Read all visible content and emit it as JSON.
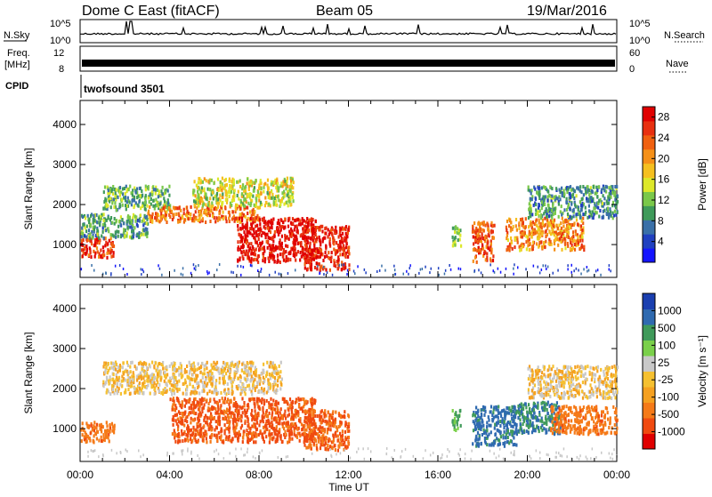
{
  "header": {
    "title": "Dome C East (fitACF)",
    "beam": "Beam 05",
    "date": "19/Mar/2016"
  },
  "status_panels": {
    "nsky_label": "N.Sky",
    "nsearch_label": "N.Search",
    "freq_label_line1": "Freq.",
    "freq_label_line2": "[MHz]",
    "nave_label": "Nave",
    "cpid_label": "CPID",
    "cpid_text": "twofsound 3501",
    "noise_ticks_left": [
      "10^5",
      "10^0"
    ],
    "noise_ticks_right": [
      "10^5",
      "10^0"
    ],
    "freq_ticks": [
      "12",
      "8"
    ],
    "nave_ticks": [
      "60",
      "0"
    ]
  },
  "colors": {
    "power_scale": [
      "#1414ff",
      "#2040c0",
      "#3a70a8",
      "#3f9a5a",
      "#7ac84a",
      "#dde82a",
      "#f5c020",
      "#f59018",
      "#f06010",
      "#e83010",
      "#e00000"
    ],
    "velocity_scale": [
      "#e00000",
      "#f04a10",
      "#f57a18",
      "#f5a020",
      "#f5c030",
      "#c8c8c8",
      "#7ad04a",
      "#3f9a5a",
      "#2f6ab0",
      "#1a3fb0"
    ]
  },
  "chart_data": [
    {
      "type": "heatmap",
      "title": "Power",
      "ylabel": "Slant Range [km]",
      "xlabel": "Time UT",
      "x_ticks": [
        "00:00",
        "04:00",
        "08:00",
        "12:00",
        "16:00",
        "20:00",
        "00:00"
      ],
      "y_ticks": [
        "1000",
        "2000",
        "3000",
        "4000"
      ],
      "ylim": [
        180,
        4600
      ],
      "xlim_hours": [
        0,
        24
      ],
      "colorbar_label": "Power [dB]",
      "colorbar_ticks": [
        "4",
        "8",
        "12",
        "16",
        "20",
        "24",
        "28"
      ],
      "colorbar_range": [
        0,
        30
      ],
      "blobs": [
        {
          "t0": 0.0,
          "t1": 1.5,
          "r0": 700,
          "r1": 1200,
          "level": 26
        },
        {
          "t0": 1.0,
          "t1": 4.0,
          "r0": 1900,
          "r1": 2500,
          "level": 11
        },
        {
          "t0": 3.0,
          "t1": 8.0,
          "r0": 1600,
          "r1": 2000,
          "level": 22
        },
        {
          "t0": 5.0,
          "t1": 9.5,
          "r0": 2000,
          "r1": 2700,
          "level": 15
        },
        {
          "t0": 7.0,
          "t1": 10.5,
          "r0": 600,
          "r1": 1700,
          "level": 29
        },
        {
          "t0": 10.0,
          "t1": 12.0,
          "r0": 400,
          "r1": 1500,
          "level": 27
        },
        {
          "t0": 0.0,
          "t1": 3.0,
          "r0": 1200,
          "r1": 1800,
          "level": 10
        },
        {
          "t0": 16.6,
          "t1": 17.0,
          "r0": 1000,
          "r1": 1500,
          "level": 14
        },
        {
          "t0": 17.5,
          "t1": 18.5,
          "r0": 600,
          "r1": 1600,
          "level": 24
        },
        {
          "t0": 19.0,
          "t1": 22.5,
          "r0": 900,
          "r1": 1700,
          "level": 21
        },
        {
          "t0": 20.0,
          "t1": 24.0,
          "r0": 1700,
          "r1": 2500,
          "level": 9
        }
      ]
    },
    {
      "type": "heatmap",
      "title": "Velocity",
      "ylabel": "Slant Range [km]",
      "xlabel": "Time UT",
      "x_ticks": [
        "00:00",
        "04:00",
        "08:00",
        "12:00",
        "16:00",
        "20:00",
        "00:00"
      ],
      "y_ticks": [
        "1000",
        "2000",
        "3000",
        "4000"
      ],
      "ylim": [
        180,
        4600
      ],
      "xlim_hours": [
        0,
        24
      ],
      "colorbar_label": "Velocity [m s⁻¹]",
      "colorbar_ticks": [
        "1000",
        "500",
        "100",
        "25",
        "-25",
        "-100",
        "-500",
        "-1000"
      ],
      "colorbar_range": [
        -1000,
        1000
      ],
      "blobs": [
        {
          "t0": 0.0,
          "t1": 1.5,
          "r0": 700,
          "r1": 1200,
          "level": -200
        },
        {
          "t0": 1.0,
          "t1": 9.0,
          "r0": 1900,
          "r1": 2700,
          "level": 0
        },
        {
          "t0": 4.0,
          "t1": 10.5,
          "r0": 700,
          "r1": 1800,
          "level": -300
        },
        {
          "t0": 10.0,
          "t1": 12.0,
          "r0": 500,
          "r1": 1500,
          "level": -250
        },
        {
          "t0": 16.6,
          "t1": 17.0,
          "r0": 1000,
          "r1": 1500,
          "level": 300
        },
        {
          "t0": 17.5,
          "t1": 19.5,
          "r0": 600,
          "r1": 1600,
          "level": 700
        },
        {
          "t0": 19.5,
          "t1": 21.5,
          "r0": 900,
          "r1": 1700,
          "level": 500
        },
        {
          "t0": 21.0,
          "t1": 24.0,
          "r0": 900,
          "r1": 1600,
          "level": -200
        },
        {
          "t0": 20.0,
          "t1": 24.0,
          "r0": 1800,
          "r1": 2600,
          "level": 0
        }
      ]
    }
  ]
}
